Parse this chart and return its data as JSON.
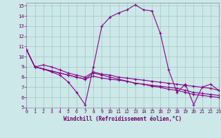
{
  "xlabel": "Windchill (Refroidissement éolien,°C)",
  "bg_color": "#cce8e8",
  "grid_color": "#aacccc",
  "line_color": "#880088",
  "xlim": [
    0,
    23
  ],
  "ylim": [
    5,
    15.3
  ],
  "xticks": [
    0,
    1,
    2,
    3,
    4,
    5,
    6,
    7,
    8,
    9,
    10,
    11,
    12,
    13,
    14,
    15,
    16,
    17,
    18,
    19,
    20,
    21,
    22,
    23
  ],
  "yticks": [
    5,
    6,
    7,
    8,
    9,
    10,
    11,
    12,
    13,
    14,
    15
  ],
  "series": [
    [
      10.7,
      9.0,
      8.8,
      8.5,
      8.2,
      7.5,
      6.5,
      5.3,
      9.0,
      13.0,
      13.9,
      14.3,
      14.6,
      15.1,
      14.6,
      14.5,
      12.3,
      8.7,
      6.5,
      7.3,
      5.3,
      7.0,
      7.3,
      6.7
    ],
    [
      10.7,
      9.0,
      9.2,
      9.0,
      8.7,
      8.4,
      8.2,
      8.0,
      8.5,
      8.3,
      8.2,
      8.0,
      7.9,
      7.8,
      7.7,
      7.6,
      7.5,
      7.4,
      7.3,
      7.2,
      7.1,
      7.0,
      6.9,
      6.7
    ],
    [
      10.7,
      9.0,
      8.8,
      8.6,
      8.4,
      8.2,
      8.0,
      7.8,
      8.1,
      7.9,
      7.8,
      7.7,
      7.6,
      7.4,
      7.3,
      7.2,
      7.1,
      7.0,
      6.9,
      6.7,
      6.5,
      6.4,
      6.3,
      6.2
    ],
    [
      10.7,
      9.0,
      8.8,
      8.6,
      8.4,
      8.2,
      8.0,
      7.8,
      8.4,
      8.2,
      8.0,
      7.8,
      7.6,
      7.4,
      7.3,
      7.1,
      7.0,
      6.8,
      6.7,
      6.5,
      6.3,
      6.2,
      6.1,
      6.0
    ]
  ]
}
